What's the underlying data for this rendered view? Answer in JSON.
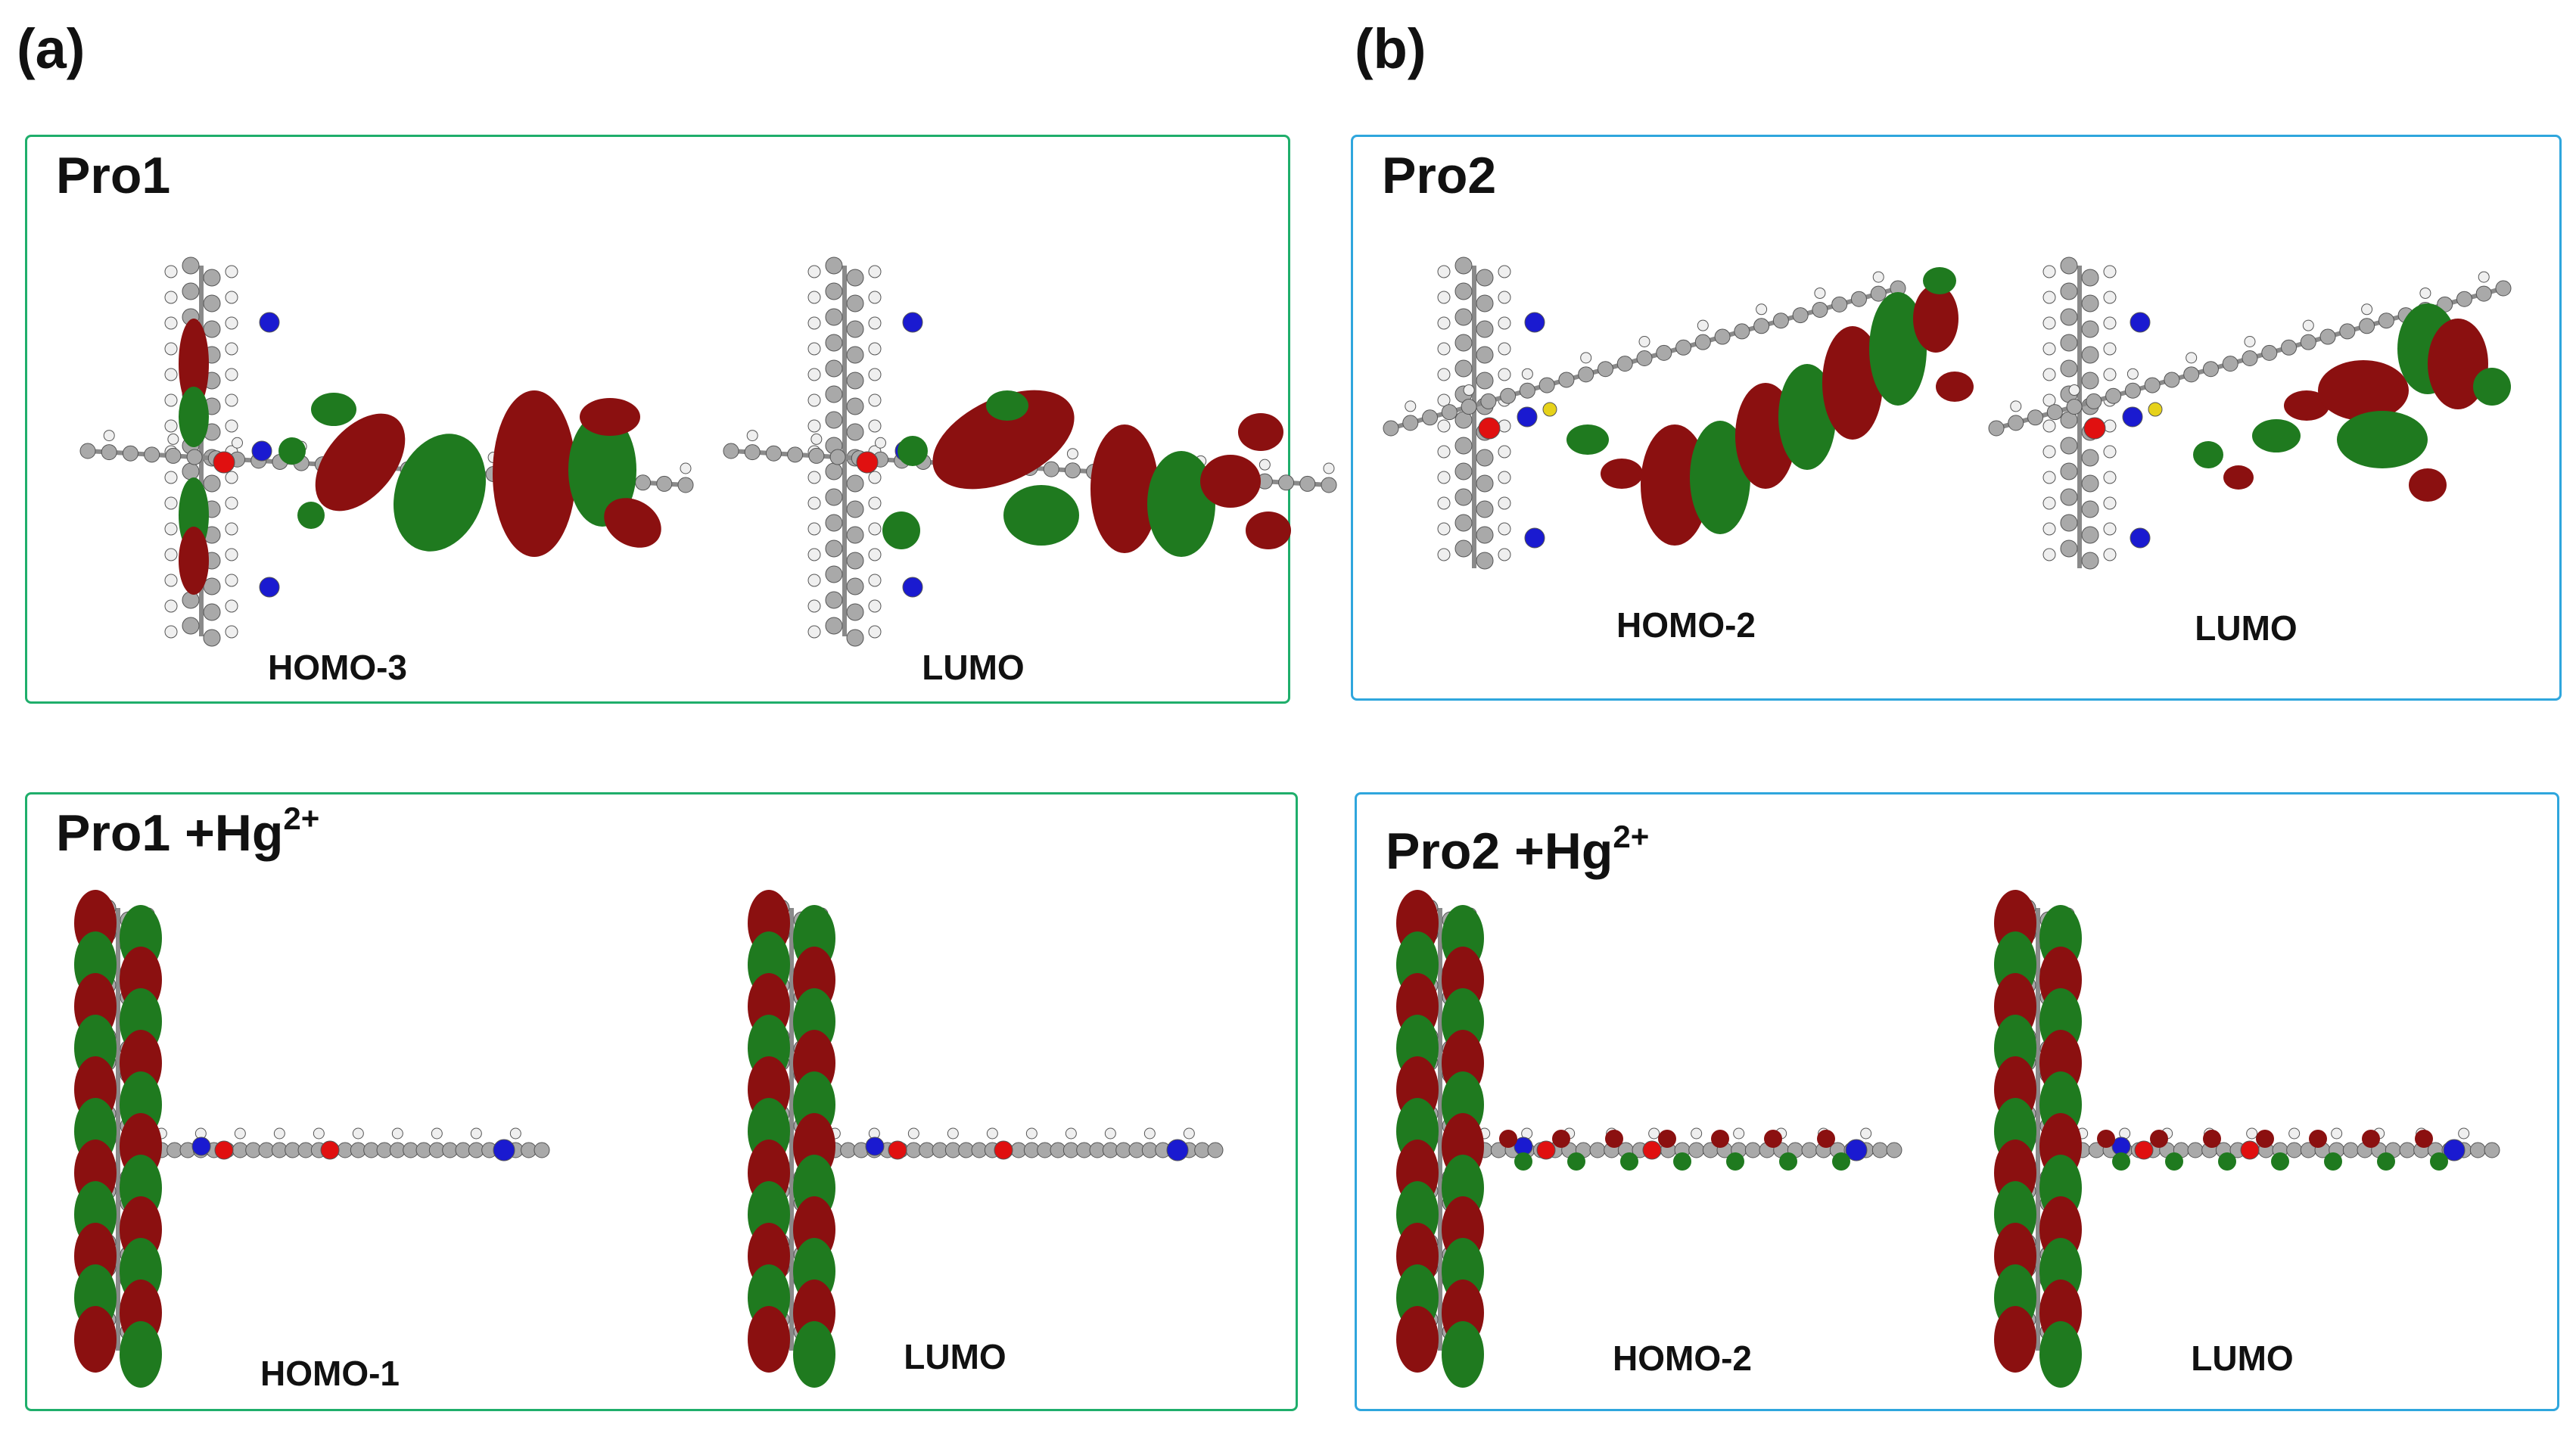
{
  "colors": {
    "green_frame": "#1fae6b",
    "blue_frame": "#2fa6dd",
    "lobe_red": "#8b1010",
    "lobe_green": "#1f7a1f",
    "carbon": "#a9a9a9",
    "hydrogen": "#efefef",
    "nitrogen": "#1a1ad0",
    "oxygen": "#e01010",
    "sulfur": "#e6d21a"
  },
  "labels": {
    "a": "(a)",
    "b": "(b)"
  },
  "panels": {
    "pro1": {
      "title": "Pro1",
      "suffix": "",
      "left_orbital": "HOMO-3",
      "right_orbital": "LUMO"
    },
    "pro2": {
      "title": "Pro2",
      "suffix": "",
      "left_orbital": "HOMO-2",
      "right_orbital": "LUMO"
    },
    "pro1hg": {
      "title": "Pro1 +Hg",
      "suffix": "2+",
      "left_orbital": "HOMO-1",
      "right_orbital": "LUMO"
    },
    "pro2hg": {
      "title": "Pro2 +Hg",
      "suffix": "2+",
      "left_orbital": "HOMO-2",
      "right_orbital": "LUMO"
    }
  }
}
